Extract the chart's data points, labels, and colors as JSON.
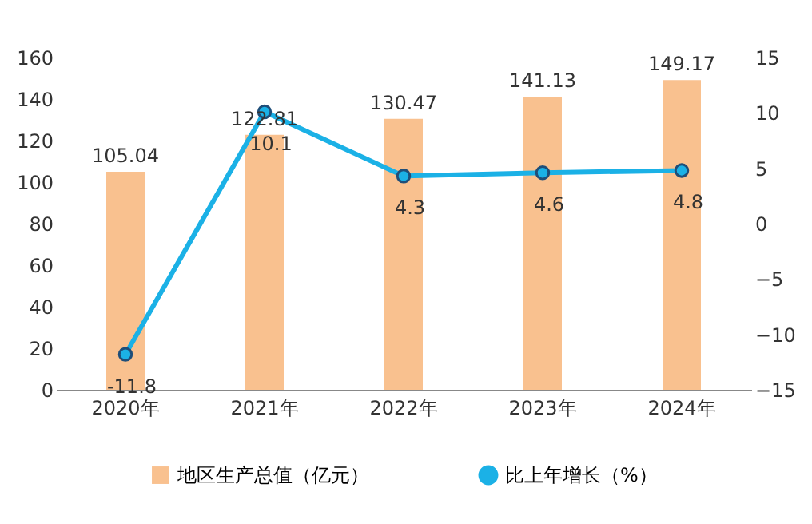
{
  "chart_data": {
    "type": "bar",
    "categories": [
      "2020年",
      "2021年",
      "2022年",
      "2023年",
      "2024年"
    ],
    "series": [
      {
        "name": "地区生产总值（亿元）",
        "color": "#f9c18f",
        "values": [
          105.04,
          122.81,
          130.47,
          141.13,
          149.17
        ]
      },
      {
        "name": "比上年增长（%）",
        "type": "line",
        "axis": "y2",
        "color": "#1bb1e6",
        "values": [
          -11.8,
          10.1,
          4.3,
          4.6,
          4.8
        ]
      }
    ],
    "ylim": [
      0,
      160
    ],
    "yticks": [
      0,
      20,
      40,
      60,
      80,
      100,
      120,
      140,
      160
    ],
    "y2lim": [
      -15,
      15
    ],
    "y2ticks": [
      -15,
      -10,
      -5,
      0,
      5,
      10,
      15
    ],
    "data_labels": true,
    "legend": "bottom",
    "marker": "circle"
  }
}
